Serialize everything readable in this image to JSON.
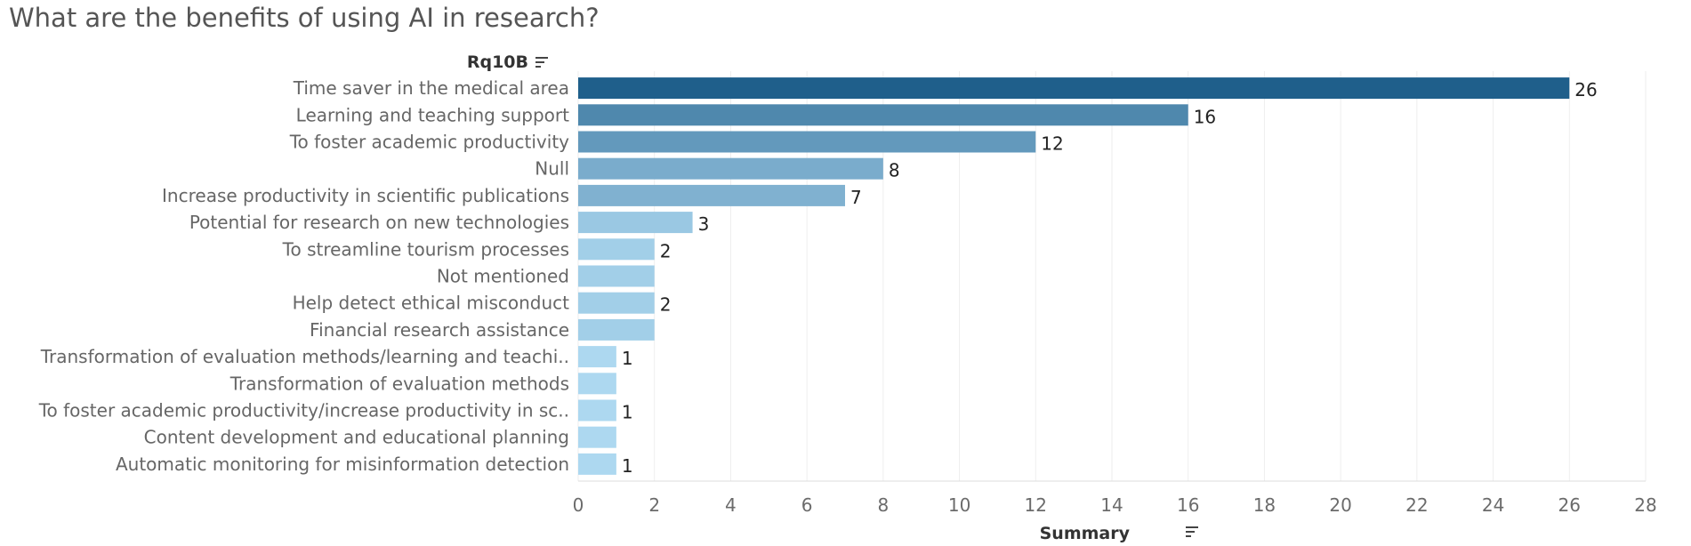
{
  "chart_data": {
    "type": "bar",
    "orientation": "horizontal",
    "title": "What are the benefits of using AI in research?",
    "category_header": "Rq10B",
    "xlabel": "Summary",
    "xlim": [
      0,
      28
    ],
    "xticks": [
      0,
      2,
      4,
      6,
      8,
      10,
      12,
      14,
      16,
      18,
      20,
      22,
      24,
      26,
      28
    ],
    "grid": true,
    "categories": [
      "Time saver in the medical area",
      "Learning and teaching support",
      "To foster academic productivity",
      "Null",
      "Increase productivity in scientific publications",
      "Potential for research on new technologies",
      "To streamline tourism processes",
      "Not mentioned",
      "Help detect ethical misconduct",
      "Financial research assistance",
      "Transformation of evaluation methods/learning and teachi..",
      "Transformation of evaluation methods",
      "To foster academic productivity/increase productivity in sc..",
      "Content development and educational planning",
      "Automatic monitoring for misinformation detection"
    ],
    "values": [
      26,
      16,
      12,
      8,
      7,
      3,
      2,
      2,
      2,
      2,
      1,
      1,
      1,
      1,
      1
    ],
    "value_labels": [
      "26",
      "16",
      "12",
      "8",
      "7",
      "3",
      "2",
      "",
      "2",
      "",
      "1",
      "",
      "1",
      "",
      "1"
    ],
    "color_range": [
      "#add8f0",
      "#1f5f8b"
    ]
  }
}
